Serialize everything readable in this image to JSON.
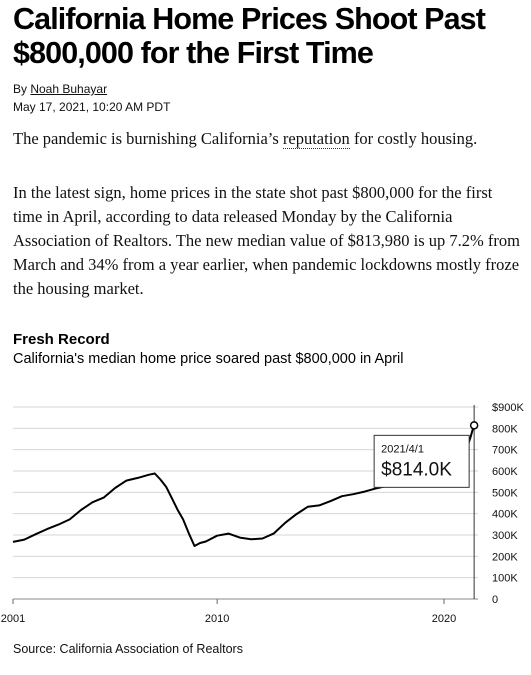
{
  "article": {
    "headline": "California Home Prices Shoot Past $800,000 for the First Time",
    "byline_prefix": "By ",
    "author": "Noah Buhayar",
    "date": "May 17, 2021, 10:20 AM PDT",
    "dek_before": "The pandemic is burnishing California’s ",
    "dek_link": "reputation",
    "dek_after": " for costly housing.",
    "body": "In the latest sign, home prices in the state shot past $800,000 for the first time in April, according to data released Monday by the California Association of Realtors. The new median value of $813,980 is up 7.2% from March and 34% from a year earlier, when pandemic lockdowns mostly froze the housing market."
  },
  "chart": {
    "title": "Fresh Record",
    "subtitle": "California's median home price soared past $800,000 in April",
    "source": "Source: California Association of Realtors",
    "tooltip": {
      "date": "2021/4/1",
      "value": "$814.0K"
    }
  },
  "chart_data": {
    "type": "line",
    "title": "Fresh Record",
    "subtitle": "California's median home price soared past $800,000 in April",
    "ylim": [
      0,
      900
    ],
    "y_unit": "thousand USD",
    "y_ticks": [
      {
        "v": 900,
        "label": "$900K"
      },
      {
        "v": 800,
        "label": "800K"
      },
      {
        "v": 700,
        "label": "700K"
      },
      {
        "v": 600,
        "label": "600K"
      },
      {
        "v": 500,
        "label": "500K"
      },
      {
        "v": 400,
        "label": "400K"
      },
      {
        "v": 300,
        "label": "300K"
      },
      {
        "v": 200,
        "label": "200K"
      },
      {
        "v": 100,
        "label": "100K"
      },
      {
        "v": 0,
        "label": "0"
      }
    ],
    "x_ticks": [
      {
        "v": 2001,
        "label": "2001"
      },
      {
        "v": 2010,
        "label": "2010"
      },
      {
        "v": 2020,
        "label": "2020"
      }
    ],
    "xlim": [
      2001,
      2021.5
    ],
    "grid": true,
    "series": [
      {
        "name": "",
        "color": "#000000",
        "x": [
          2001.0,
          2001.5,
          2002.0,
          2002.5,
          2003.0,
          2003.5,
          2004.0,
          2004.5,
          2005.0,
          2005.5,
          2006.0,
          2006.5,
          2007.0,
          2007.25,
          2007.5,
          2007.75,
          2008.0,
          2008.25,
          2008.5,
          2008.75,
          2009.0,
          2009.25,
          2009.5,
          2010.0,
          2010.5,
          2011.0,
          2011.5,
          2012.0,
          2012.5,
          2013.0,
          2013.5,
          2014.0,
          2014.5,
          2015.0,
          2015.5,
          2016.0,
          2016.5,
          2017.0,
          2017.5,
          2018.0,
          2018.5,
          2019.0,
          2019.5,
          2020.0,
          2020.5,
          2021.0,
          2021.17,
          2021.33
        ],
        "y": [
          265,
          275,
          305,
          330,
          345,
          375,
          420,
          455,
          475,
          520,
          555,
          570,
          585,
          590,
          560,
          530,
          470,
          420,
          370,
          310,
          250,
          260,
          270,
          300,
          305,
          285,
          280,
          280,
          305,
          360,
          400,
          430,
          440,
          460,
          480,
          490,
          505,
          520,
          530,
          545,
          550,
          560,
          585,
          620,
          690,
          705,
          760,
          814
        ]
      }
    ]
  }
}
